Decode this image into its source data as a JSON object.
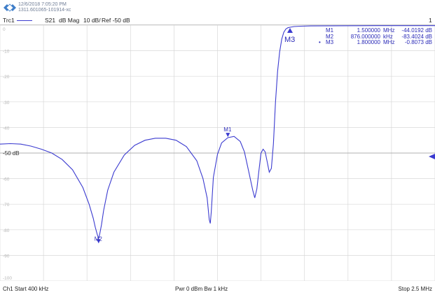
{
  "header": {
    "datetime": "12/6/2018 7:05:20 PM",
    "instrument_id": "1311.601065-101914-xc"
  },
  "trace_bar": {
    "trace_name": "Trc1",
    "parameter": "S21",
    "format": "dB Mag",
    "scale": "10 dB/",
    "ref": "Ref -50 dB",
    "channel_number": "1"
  },
  "colors": {
    "trace": "#3b3bd0",
    "marker_text": "#2b2bb8",
    "grid": "#d8d8d8",
    "ref_line": "#b0b0b0"
  },
  "chart_data": {
    "type": "line",
    "x_unit": "MHz",
    "xlim": [
      0.4,
      2.5
    ],
    "ylim": [
      -100,
      0
    ],
    "y_ticks": [
      {
        "v": 0,
        "label": "0"
      },
      {
        "v": -10,
        "label": "-10"
      },
      {
        "v": -20,
        "label": "-20"
      },
      {
        "v": -30,
        "label": "-30"
      },
      {
        "v": -40,
        "label": "-40"
      },
      {
        "v": -50,
        "label": "-50 dB"
      },
      {
        "v": -60,
        "label": "-60"
      },
      {
        "v": -70,
        "label": "-70"
      },
      {
        "v": -80,
        "label": "-80"
      },
      {
        "v": -90,
        "label": "-90"
      },
      {
        "v": -100,
        "label": "-100"
      }
    ],
    "grid": true,
    "ref_level": -50,
    "series": [
      {
        "x": [
          0.4,
          0.45,
          0.5,
          0.55,
          0.6,
          0.65,
          0.7,
          0.75,
          0.8,
          0.83,
          0.85,
          0.86,
          0.87,
          0.876,
          0.882,
          0.89,
          0.9,
          0.92,
          0.95,
          1.0,
          1.05,
          1.1,
          1.15,
          1.2,
          1.25,
          1.3,
          1.35,
          1.38,
          1.4,
          1.41,
          1.415,
          1.42,
          1.43,
          1.45,
          1.47,
          1.5,
          1.53,
          1.56,
          1.58,
          1.6,
          1.62,
          1.63,
          1.64,
          1.65,
          1.66,
          1.67,
          1.68,
          1.69,
          1.7,
          1.71,
          1.72,
          1.73,
          1.74,
          1.75,
          1.76,
          1.77,
          1.78,
          1.79,
          1.8,
          1.82,
          1.85,
          1.9,
          2.0,
          2.1,
          2.2,
          2.3,
          2.4,
          2.5
        ],
        "y": [
          -46.5,
          -46.3,
          -46.5,
          -47.3,
          -48.5,
          -50.0,
          -52.5,
          -56.5,
          -63.5,
          -70.0,
          -75.5,
          -79.0,
          -82.0,
          -83.4,
          -81.5,
          -78.0,
          -72.5,
          -64.5,
          -57.5,
          -50.8,
          -47.0,
          -45.0,
          -44.2,
          -44.2,
          -45.0,
          -47.5,
          -53.0,
          -60.0,
          -67.5,
          -76.0,
          -77.5,
          -73.0,
          -59.5,
          -50.5,
          -46.0,
          -44.0,
          -43.5,
          -45.5,
          -49.5,
          -57.0,
          -64.5,
          -67.5,
          -64.0,
          -57.0,
          -50.0,
          -48.5,
          -49.5,
          -53.5,
          -57.5,
          -56.0,
          -46.5,
          -30.0,
          -18.0,
          -10.5,
          -5.5,
          -2.8,
          -1.5,
          -1.0,
          -0.8073,
          -0.55,
          -0.4,
          -0.3,
          -0.25,
          -0.22,
          -0.2,
          -0.2,
          -0.2,
          -0.2
        ]
      }
    ],
    "markers": [
      {
        "name": "M1",
        "x": 1.5,
        "y": -44.0192,
        "label_pos": "above"
      },
      {
        "name": "M2",
        "x": 0.876,
        "y": -83.4024,
        "label_pos": "below"
      },
      {
        "name": "M3",
        "x": 1.8,
        "y": -0.8073,
        "label_pos": "below"
      }
    ]
  },
  "marker_table": [
    {
      "flag": "",
      "name": "M1",
      "freq": "1.500000",
      "unit": "MHz",
      "value": "-44.0192  dB"
    },
    {
      "flag": "",
      "name": "M2",
      "freq": "876.000000",
      "unit": "kHz",
      "value": "-83.4024  dB"
    },
    {
      "flag": "•",
      "name": "M3",
      "freq": "1.800000",
      "unit": "MHz",
      "value": "-0.8073  dB"
    }
  ],
  "footer": {
    "start": "Ch1  Start  400 kHz",
    "center": "Pwr  0 dBm  Bw  1 kHz",
    "stop": "Stop  2.5 MHz"
  }
}
